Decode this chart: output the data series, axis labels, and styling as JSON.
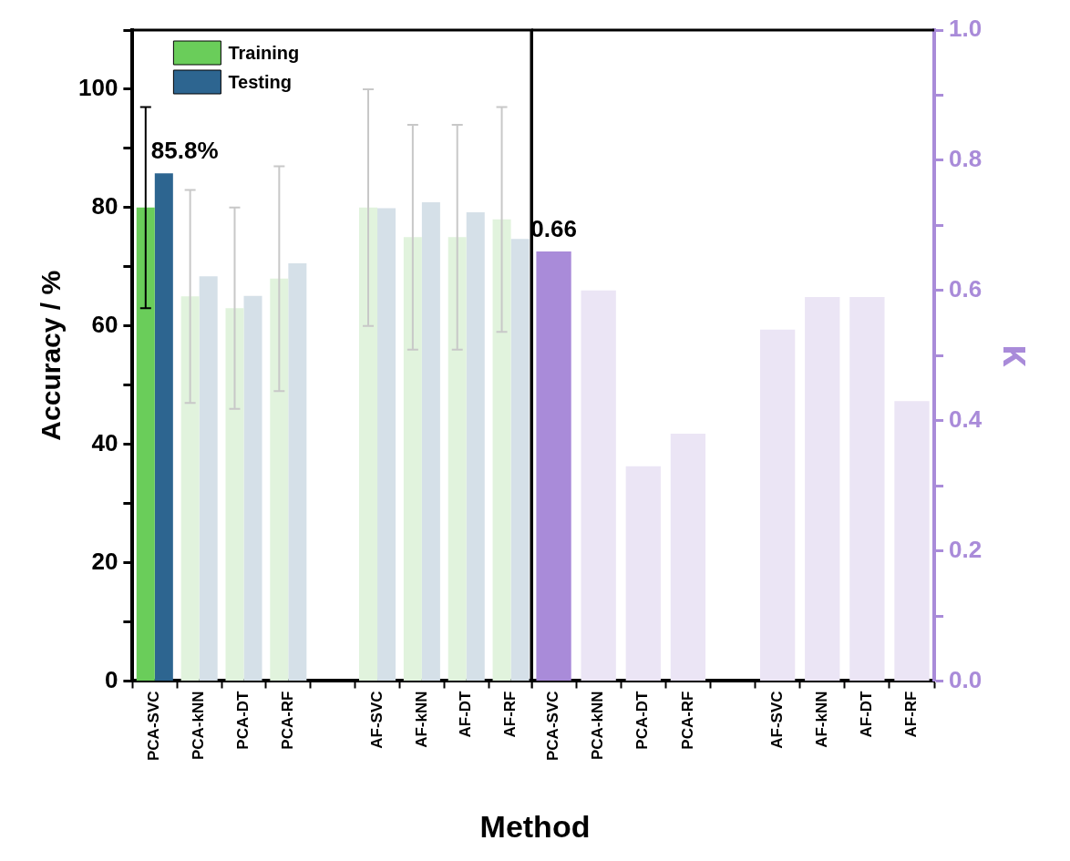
{
  "chart_data": [
    {
      "type": "bar",
      "ylabel": "Accuracy / %",
      "xlabel": "Method",
      "legend": "top left",
      "categories": [
        "PCA-SVC",
        "PCA-kNN",
        "PCA-DT",
        "PCA-RF",
        null,
        "AF-SVC",
        "AF-kNN",
        "AF-DT",
        "AF-RF"
      ],
      "ylim": [
        0,
        110
      ],
      "yticks": [
        0,
        {
          "value": 10,
          "label": null
        },
        20,
        {
          "value": 30,
          "label": null
        },
        40,
        {
          "value": 50,
          "label": null
        },
        60,
        {
          "value": 70,
          "label": null
        },
        80,
        {
          "value": 90,
          "label": null
        },
        100,
        {
          "value": 110,
          "label": null
        }
      ],
      "series": [
        {
          "name": "Training",
          "color": "#6acd5a",
          "colors": [
            "#6acd5a",
            "#e1f3dd",
            "#e1f3dd",
            "#e1f3dd",
            null,
            "#e1f3dd",
            "#e1f3dd",
            "#e1f3dd",
            "#e1f3dd"
          ],
          "values": [
            80,
            65,
            63,
            68,
            null,
            80,
            75,
            75,
            78
          ],
          "errors": [
            [
              63,
              97
            ],
            [
              47,
              83
            ],
            [
              46,
              80
            ],
            [
              49,
              87
            ],
            null,
            [
              60,
              100
            ],
            [
              56,
              94
            ],
            [
              56,
              94
            ],
            [
              59,
              97
            ]
          ]
        },
        {
          "name": "Testing",
          "color": "#2d6590",
          "colors": [
            "#2d6590",
            "#d5e0e8",
            "#d5e0e8",
            "#d5e0e8",
            null,
            "#d5e0e8",
            "#d5e0e8",
            "#d5e0e8",
            "#d5e0e8"
          ],
          "values": [
            85.8,
            68.4,
            65.1,
            70.6,
            null,
            79.9,
            80.9,
            79.2,
            74.7
          ],
          "value_labels": [
            "85.8%",
            null,
            null,
            null,
            null,
            null,
            null,
            null,
            null
          ]
        }
      ]
    },
    {
      "type": "bar",
      "y2label": "κ",
      "categories": [
        "PCA-SVC",
        "PCA-kNN",
        "PCA-DT",
        "PCA-RF",
        null,
        "AF-SVC",
        "AF-kNN",
        "AF-DT",
        "AF-RF"
      ],
      "y2lim": [
        0,
        1
      ],
      "y2ticks": [
        {
          "value": 0,
          "label": "0.0"
        },
        {
          "value": 0.1,
          "label": null
        },
        {
          "value": 0.2,
          "label": "0.2"
        },
        {
          "value": 0.3,
          "label": null
        },
        {
          "value": 0.4,
          "label": "0.4"
        },
        {
          "value": 0.5,
          "label": null
        },
        {
          "value": 0.6,
          "label": "0.6"
        },
        {
          "value": 0.7,
          "label": null
        },
        {
          "value": 0.8,
          "label": "0.8"
        },
        {
          "value": 0.9,
          "label": null
        },
        {
          "value": 1,
          "label": "1.0"
        }
      ],
      "series": [
        {
          "axis": "y2",
          "color": "#a98bd9",
          "colors": [
            "#a98bd9",
            "#ebe5f5",
            "#ebe5f5",
            "#ebe5f5",
            null,
            "#ebe5f5",
            "#ebe5f5",
            "#ebe5f5",
            "#ebe5f5"
          ],
          "values": [
            0.66,
            0.6,
            0.33,
            0.38,
            null,
            0.54,
            0.59,
            0.59,
            0.43
          ],
          "value_labels": [
            "0.66",
            null,
            null,
            null,
            null,
            null,
            null,
            null,
            null
          ]
        }
      ]
    }
  ]
}
